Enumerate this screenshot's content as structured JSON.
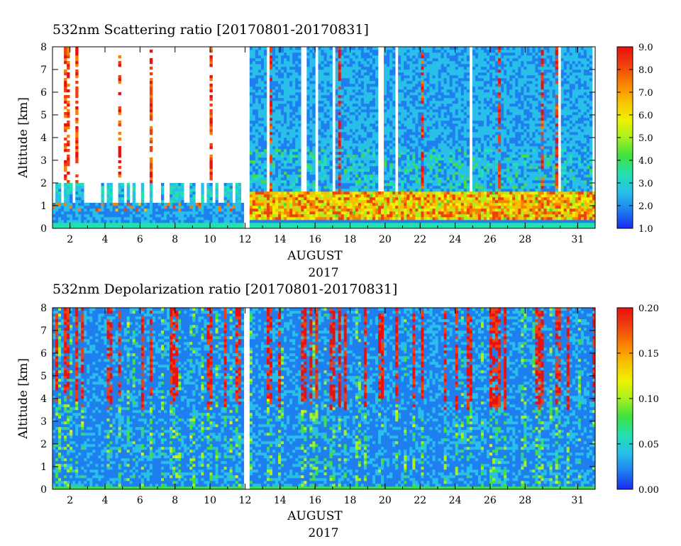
{
  "chart_data": [
    {
      "type": "heatmap",
      "title": "532nm Scattering ratio [20170801-20170831]",
      "ylabel": "Altitude [km]",
      "xlabel": "AUGUST",
      "xlabel2": "2017",
      "x_ticks": [
        "2",
        "4",
        "6",
        "8",
        "10",
        "12",
        "14",
        "16",
        "18",
        "20",
        "22",
        "24",
        "26",
        "28",
        "31"
      ],
      "x_tick_days": [
        2,
        4,
        6,
        8,
        10,
        12,
        14,
        16,
        18,
        20,
        22,
        24,
        26,
        28,
        31
      ],
      "xlim": [
        1,
        32
      ],
      "y_ticks": [
        "0",
        "1",
        "2",
        "3",
        "4",
        "5",
        "6",
        "7",
        "8"
      ],
      "ylim": [
        0,
        8
      ],
      "colorbar": {
        "ticks": [
          "1.0",
          "2.0",
          "3.0",
          "4.0",
          "5.0",
          "6.0",
          "7.0",
          "8.0",
          "9.0"
        ],
        "range": [
          1,
          9
        ]
      },
      "data_gap_days": [
        12.0,
        12.2
      ],
      "rendering": "scattering"
    },
    {
      "type": "heatmap",
      "title": "532nm Depolarization ratio [20170801-20170831]",
      "ylabel": "Altitude [km]",
      "xlabel": "AUGUST",
      "xlabel2": "2017",
      "x_ticks": [
        "2",
        "4",
        "6",
        "8",
        "10",
        "12",
        "14",
        "16",
        "18",
        "20",
        "22",
        "24",
        "26",
        "28",
        "31"
      ],
      "x_tick_days": [
        2,
        4,
        6,
        8,
        10,
        12,
        14,
        16,
        18,
        20,
        22,
        24,
        26,
        28,
        31
      ],
      "xlim": [
        1,
        32
      ],
      "y_ticks": [
        "0",
        "1",
        "2",
        "3",
        "4",
        "5",
        "6",
        "7",
        "8"
      ],
      "ylim": [
        0,
        8
      ],
      "colorbar": {
        "ticks": [
          "0.00",
          "0.05",
          "0.10",
          "0.15",
          "0.20"
        ],
        "range": [
          0,
          0.2
        ]
      },
      "data_gap_days": [
        12.0,
        12.2
      ],
      "rendering": "depolarization"
    }
  ],
  "colormap": [
    "#1a2bf0",
    "#1f7ff0",
    "#28c0e8",
    "#22e0b0",
    "#40e040",
    "#a8f020",
    "#f0f000",
    "#f8c000",
    "#f88000",
    "#f04010",
    "#e81010"
  ]
}
